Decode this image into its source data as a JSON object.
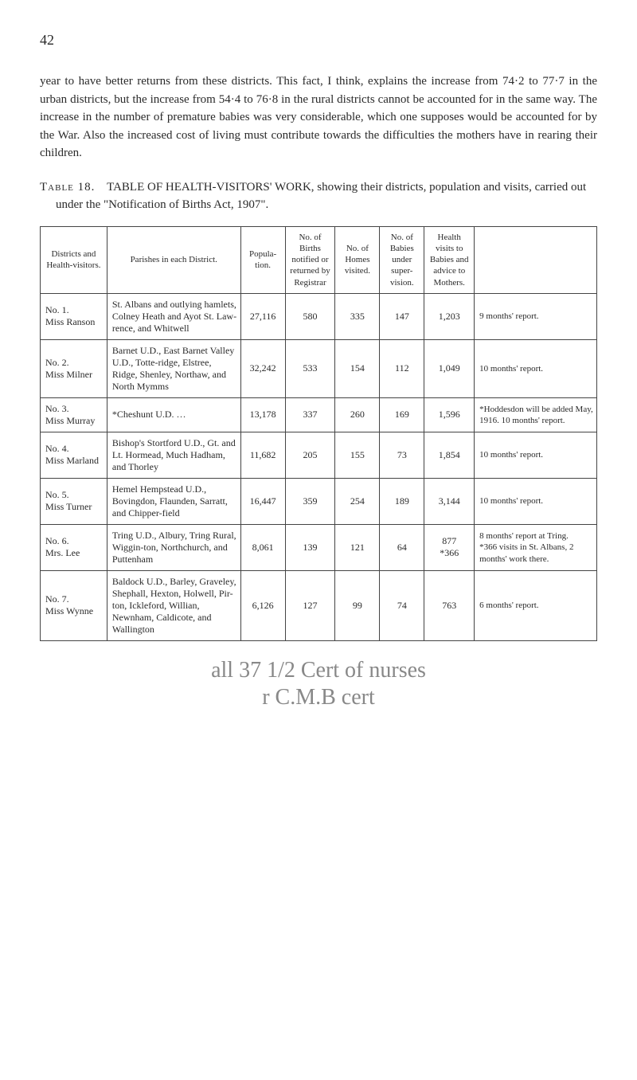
{
  "page_number": "42",
  "intro_paragraph": "year to have better returns from these districts. This fact, I think, explains the increase from 74·2 to 77·7 in the urban districts, but the increase from 54·4 to 76·8 in the rural districts cannot be accounted for in the same way. The increase in the number of premature babies was very considerable, which one supposes would be accounted for by the War. Also the increased cost of living must contribute towards the difficulties the mothers have in rearing their children.",
  "table_caption_prefix": "Table 18.",
  "table_caption_title": "TABLE OF HEALTH-VISITORS' WORK,",
  "table_caption_rest": "showing their districts, population and visits, carried out under the \"Notification of Births Act, 1907\".",
  "headers": {
    "col1": "Districts and Health-visitors.",
    "col2": "Parishes in each District.",
    "col3": "Popula-tion.",
    "col4": "No. of Births notified or returned by Registrar",
    "col5": "No. of Homes visited.",
    "col6": "No. of Babies under super-vision.",
    "col7": "Health visits to Babies and advice to Mothers.",
    "col8": ""
  },
  "rows": [
    {
      "district": "No. 1.\nMiss Ranson",
      "parishes": "St. Albans and outlying hamlets, Colney Heath and Ayot St. Law-rence, and Whitwell",
      "population": "27,116",
      "births": "580",
      "homes": "335",
      "babies": "147",
      "visits": "1,203",
      "notes": "9 months' report."
    },
    {
      "district": "No. 2.\nMiss Milner",
      "parishes": "Barnet U.D., East Barnet Valley U.D., Totte-ridge, Elstree, Ridge, Shenley, Northaw, and North Mymms",
      "population": "32,242",
      "births": "533",
      "homes": "154",
      "babies": "112",
      "visits": "1,049",
      "notes": "10 months' report."
    },
    {
      "district": "No. 3.\nMiss Murray",
      "parishes": "*Cheshunt U.D.      …",
      "population": "13,178",
      "births": "337",
      "homes": "260",
      "babies": "169",
      "visits": "1,596",
      "notes": "*Hoddesdon will be added May, 1916. 10 months' report."
    },
    {
      "district": "No. 4.\nMiss Marland",
      "parishes": "Bishop's Stortford U.D., Gt. and Lt. Hormead, Much Hadham, and Thorley",
      "population": "11,682",
      "births": "205",
      "homes": "155",
      "babies": "73",
      "visits": "1,854",
      "notes": "10 months' report."
    },
    {
      "district": "No. 5.\nMiss Turner",
      "parishes": "Hemel Hempstead U.D., Bovingdon, Flaunden, Sarratt, and Chipper-field",
      "population": "16,447",
      "births": "359",
      "homes": "254",
      "babies": "189",
      "visits": "3,144",
      "notes": "10 months' report."
    },
    {
      "district": "No. 6.\nMrs. Lee",
      "parishes": "Tring U.D., Albury, Tring Rural, Wiggin-ton, Northchurch, and Puttenham",
      "population": "8,061",
      "births": "139",
      "homes": "121",
      "babies": "64",
      "visits": "877\n*366",
      "notes": "8 months' report at Tring.\n*366 visits in St. Albans, 2 months' work there."
    },
    {
      "district": "No. 7.\nMiss Wynne",
      "parishes": "Baldock U.D., Barley, Graveley, Shephall, Hexton, Holwell, Pir-ton, Ickleford, Willian, Newnham, Caldicote, and Wallington",
      "population": "6,126",
      "births": "127",
      "homes": "99",
      "babies": "74",
      "visits": "763",
      "notes": "6 months' report."
    }
  ],
  "handwriting_line1": "all 37 1/2 Cert of nurses",
  "handwriting_line2": "r C.M.B cert"
}
